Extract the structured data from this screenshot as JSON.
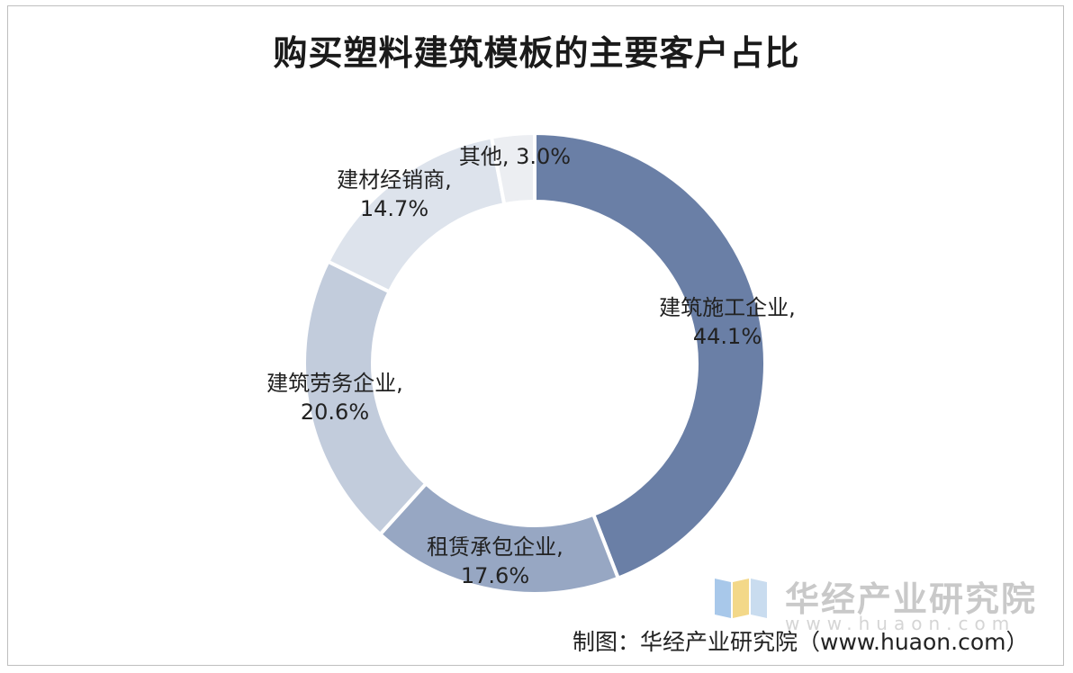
{
  "chart_data": {
    "type": "pie",
    "title": "购买塑料建筑模板的主要客户占比",
    "slices": [
      {
        "name": "建筑施工企业",
        "value": 44.1,
        "label": "44.1%",
        "color": "#6a7fa6"
      },
      {
        "name": "租赁承包企业",
        "value": 17.6,
        "label": "17.6%",
        "color": "#97a7c3"
      },
      {
        "name": "建筑劳务企业",
        "value": 20.6,
        "label": "20.6%",
        "color": "#c2ccdc"
      },
      {
        "name": "建材经销商",
        "value": 14.7,
        "label": "14.7%",
        "color": "#dde3ec"
      },
      {
        "name": "其他",
        "value": 3.0,
        "label": "3.0%",
        "color": "#eceef2"
      }
    ],
    "donut": true,
    "legend": "none"
  },
  "watermark": {
    "name": "华经产业研究院",
    "url": "www.huaon.com"
  },
  "source": "制图：华经产业研究院（www.huaon.com）"
}
